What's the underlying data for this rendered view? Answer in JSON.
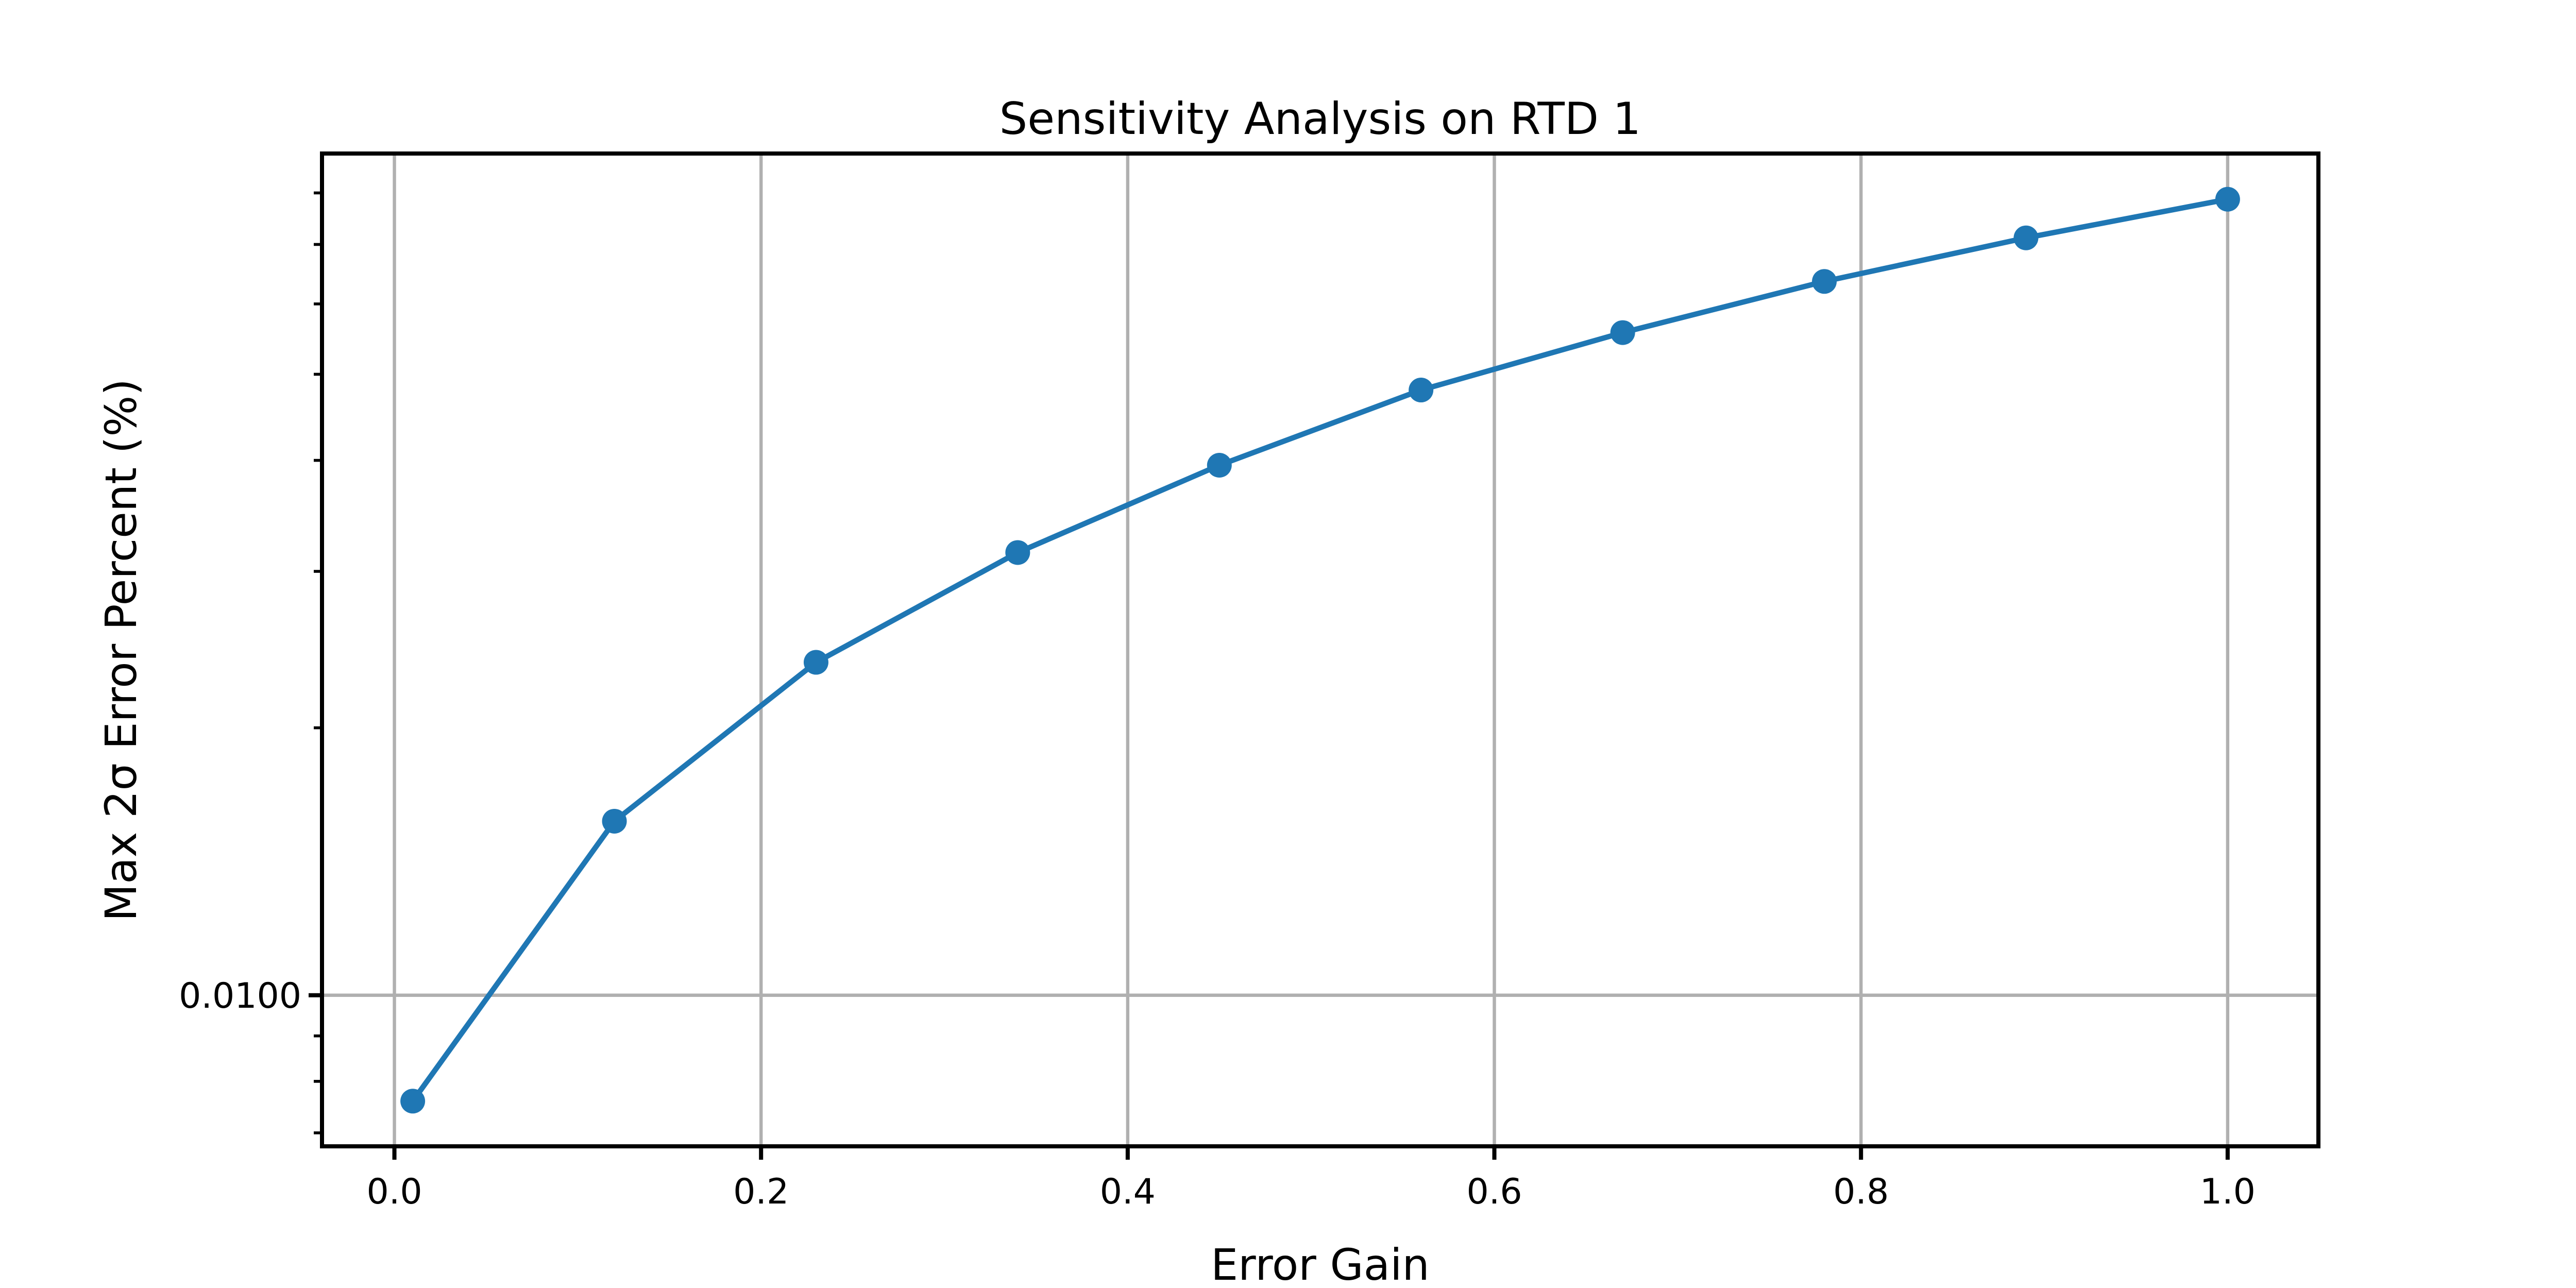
{
  "chart_data": {
    "type": "line",
    "title": "Sensitivity Analysis on RTD 1",
    "xlabel": "Error Gain",
    "ylabel": "Max 2σ Error Percent (%)",
    "x": [
      0.01,
      0.12,
      0.23,
      0.34,
      0.45,
      0.56,
      0.67,
      0.78,
      0.89,
      1.0
    ],
    "y": [
      0.0076,
      0.0157,
      0.0237,
      0.0315,
      0.0395,
      0.048,
      0.0557,
      0.0636,
      0.0712,
      0.0787
    ],
    "marker": "circle",
    "xscale": "linear",
    "yscale": "log",
    "xlim": [
      -0.0395,
      1.0495
    ],
    "ylim": [
      0.00676,
      0.0886
    ],
    "x_ticks": [
      0.0,
      0.2,
      0.4,
      0.6,
      0.8,
      1.0
    ],
    "x_tick_labels": [
      "0.0",
      "0.2",
      "0.4",
      "0.6",
      "0.8",
      "1.0"
    ],
    "y_ticks": [
      0.01
    ],
    "y_tick_labels": [
      "0.0100"
    ],
    "y_minor_ticks": [
      0.007,
      0.008,
      0.009,
      0.02,
      0.03,
      0.04,
      0.05,
      0.06,
      0.07,
      0.08
    ],
    "grid": true,
    "legend": false,
    "line_color": "#1f77b4",
    "grid_color": "#b0b0b0",
    "spine_color": "#000000",
    "text_color": "#000000",
    "background": "#ffffff"
  }
}
